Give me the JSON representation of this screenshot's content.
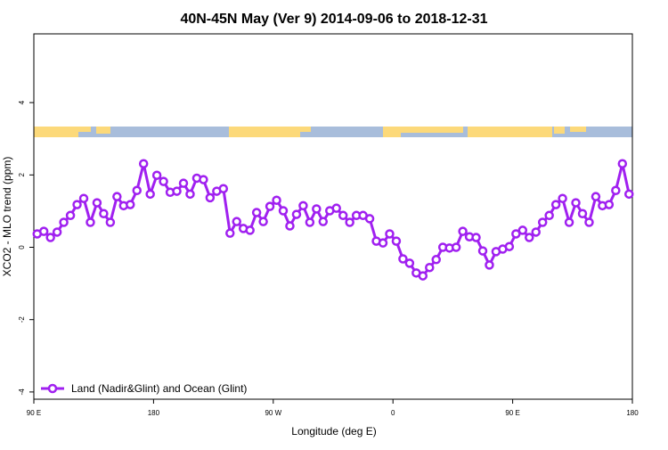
{
  "chart_data": {
    "type": "line",
    "title": "40N-45N May (Ver 9)   2014-09-06 to 2018-12-31",
    "x_label": "Longitude (deg E)",
    "y_label": "XCO2 - MLO trend (ppm)",
    "x": [
      92.5,
      97.5,
      102.5,
      107.5,
      112.5,
      117.5,
      122.5,
      127.5,
      132.5,
      137.5,
      142.5,
      147.5,
      152.5,
      157.5,
      162.5,
      167.5,
      172.5,
      177.5,
      182.5,
      187.5,
      192.5,
      197.5,
      202.5,
      207.5,
      212.5,
      217.5,
      222.5,
      227.5,
      232.5,
      237.5,
      242.5,
      247.5,
      252.5,
      257.5,
      262.5,
      267.5,
      272.5,
      277.5,
      282.5,
      287.5,
      292.5,
      297.5,
      302.5,
      307.5,
      312.5,
      317.5,
      322.5,
      327.5,
      332.5,
      337.5,
      342.5,
      347.5,
      352.5,
      357.5,
      362.5,
      367.5,
      372.5,
      377.5,
      382.5,
      387.5,
      392.5,
      397.5,
      402.5,
      407.5,
      412.5,
      417.5,
      422.5,
      427.5,
      432.5,
      437.5,
      442.5,
      447.5,
      452.5,
      457.5,
      462.5,
      467.5,
      472.5,
      477.5,
      482.5,
      487.5,
      492.5,
      497.5,
      502.5,
      507.5,
      512.5,
      517.5,
      522.5,
      527.5,
      532.5,
      537.5
    ],
    "series": [
      {
        "name": "Land (Nadir&Glint) and Ocean (Glint)",
        "color": "#a020f0",
        "values": [
          0.37,
          0.44,
          0.27,
          0.42,
          0.69,
          0.88,
          1.18,
          1.35,
          0.69,
          1.23,
          0.93,
          0.69,
          1.4,
          1.15,
          1.18,
          1.57,
          2.31,
          1.47,
          1.99,
          1.82,
          1.52,
          1.55,
          1.77,
          1.47,
          1.91,
          1.87,
          1.37,
          1.55,
          1.62,
          0.39,
          0.71,
          0.52,
          0.47,
          0.96,
          0.71,
          1.13,
          1.3,
          1.01,
          0.59,
          0.91,
          1.15,
          0.69,
          1.06,
          0.71,
          1.01,
          1.08,
          0.88,
          0.69,
          0.88,
          0.88,
          0.79,
          0.17,
          0.12,
          0.37,
          0.17,
          -0.32,
          -0.44,
          -0.71,
          -0.79,
          -0.56,
          -0.34,
          0.0,
          -0.02,
          0.0,
          0.44,
          0.29,
          0.27,
          -0.1,
          -0.49,
          -0.12,
          -0.05,
          0.02,
          0.37,
          0.47,
          0.27,
          0.42,
          0.69,
          0.88,
          1.18,
          1.35,
          0.69,
          1.23,
          0.93,
          0.69,
          1.4,
          1.15,
          1.18,
          1.57,
          2.31,
          1.47
        ]
      }
    ],
    "xlim": [
      90,
      540
    ],
    "xticks": [
      {
        "value": 90,
        "label": "90 E"
      },
      180,
      {
        "value": 270,
        "label": "90 W"
      },
      {
        "value": 360,
        "label": "0"
      },
      {
        "value": 450,
        "label": "90 E"
      },
      {
        "value": 540,
        "label": "180"
      }
    ],
    "ylim": [
      -4.2,
      5.9
    ],
    "yticks": [
      -4,
      -2,
      0,
      2,
      4
    ],
    "legend": "bottomleft"
  }
}
